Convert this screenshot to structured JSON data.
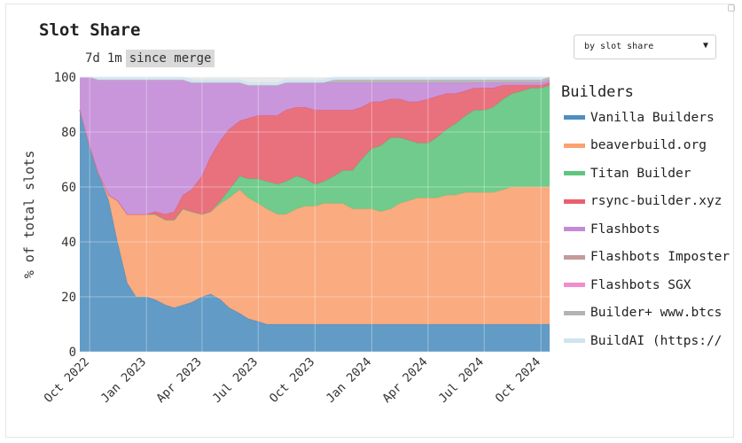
{
  "page": {
    "title": "Slot Share",
    "range_tabs": [
      "7d",
      "1m",
      "since merge"
    ],
    "active_range": "since merge",
    "dropdown": {
      "selected": "by slot share"
    },
    "legend_title": "Builders"
  },
  "chart_data": {
    "type": "area",
    "stacked": true,
    "title": "Slot Share",
    "ylabel": "% of total slots",
    "xlabel": "",
    "ylim": [
      0,
      100
    ],
    "yticks": [
      0,
      20,
      40,
      60,
      80,
      100
    ],
    "xticks": [
      "Oct 2022",
      "Jan 2023",
      "Apr 2023",
      "Jul 2023",
      "Oct 2023",
      "Jan 2024",
      "Apr 2024",
      "Jul 2024",
      "Oct 2024"
    ],
    "grid": true,
    "legend_position": "right",
    "x": [
      "2022-09-15",
      "2022-10-01",
      "2022-10-15",
      "2022-11-01",
      "2022-11-15",
      "2022-12-01",
      "2022-12-15",
      "2023-01-01",
      "2023-01-15",
      "2023-02-01",
      "2023-02-15",
      "2023-03-01",
      "2023-03-15",
      "2023-04-01",
      "2023-04-15",
      "2023-05-01",
      "2023-05-15",
      "2023-06-01",
      "2023-06-15",
      "2023-07-01",
      "2023-07-15",
      "2023-08-01",
      "2023-08-15",
      "2023-09-01",
      "2023-09-15",
      "2023-10-01",
      "2023-10-15",
      "2023-11-01",
      "2023-11-15",
      "2023-12-01",
      "2023-12-15",
      "2024-01-01",
      "2024-01-15",
      "2024-02-01",
      "2024-02-15",
      "2024-03-01",
      "2024-03-15",
      "2024-04-01",
      "2024-04-15",
      "2024-05-01",
      "2024-05-15",
      "2024-06-01",
      "2024-06-15",
      "2024-07-01",
      "2024-07-15",
      "2024-08-01",
      "2024-08-15",
      "2024-09-01",
      "2024-09-15",
      "2024-10-01",
      "2024-10-15"
    ],
    "series": [
      {
        "name": "Vanilla Builders",
        "color": "#4f8fc0",
        "values": [
          88,
          75,
          65,
          55,
          40,
          25,
          20,
          20,
          19,
          17,
          16,
          17,
          18,
          20,
          21,
          19,
          16,
          14,
          12,
          11,
          10,
          10,
          10,
          10,
          10,
          10,
          10,
          10,
          10,
          10,
          10,
          10,
          10,
          10,
          10,
          10,
          10,
          10,
          10,
          10,
          10,
          10,
          10,
          10,
          10,
          10,
          10,
          10,
          10,
          10,
          10
        ]
      },
      {
        "name": "beaverbuild.org",
        "color": "#fca271",
        "values": [
          0,
          0,
          0,
          2,
          15,
          25,
          30,
          30,
          31,
          31,
          32,
          35,
          33,
          30,
          30,
          35,
          40,
          45,
          44,
          43,
          42,
          40,
          40,
          42,
          43,
          43,
          44,
          44,
          44,
          42,
          42,
          42,
          41,
          42,
          44,
          45,
          46,
          46,
          46,
          47,
          47,
          48,
          48,
          48,
          48,
          49,
          50,
          50,
          50,
          50,
          50
        ]
      },
      {
        "name": "Titan Builder",
        "color": "#5ec67e",
        "values": [
          0,
          0,
          0,
          0,
          0,
          0,
          0,
          0,
          0,
          0,
          0,
          0,
          0,
          0,
          0,
          1,
          3,
          5,
          7,
          9,
          10,
          11,
          12,
          12,
          10,
          8,
          8,
          10,
          12,
          14,
          18,
          22,
          24,
          26,
          24,
          22,
          20,
          20,
          22,
          24,
          26,
          28,
          30,
          30,
          31,
          33,
          34,
          35,
          36,
          36,
          37
        ]
      },
      {
        "name": "rsync-builder.xyz",
        "color": "#e8606e",
        "values": [
          0,
          0,
          0,
          0,
          0,
          0,
          0,
          0,
          1,
          2,
          3,
          5,
          8,
          14,
          20,
          22,
          22,
          20,
          22,
          23,
          24,
          25,
          26,
          25,
          26,
          27,
          26,
          24,
          22,
          22,
          19,
          17,
          16,
          14,
          14,
          14,
          15,
          16,
          15,
          13,
          11,
          9,
          8,
          8,
          7,
          5,
          3,
          2,
          1,
          1,
          1
        ]
      },
      {
        "name": "Flashbots",
        "color": "#c48ad8",
        "values": [
          12,
          25,
          34,
          42,
          44,
          49,
          49,
          49,
          48,
          49,
          48,
          42,
          39,
          34,
          27,
          21,
          17,
          14,
          12,
          11,
          11,
          11,
          10,
          9,
          9,
          10,
          10,
          10,
          10,
          10,
          9,
          7,
          7,
          6,
          6,
          7,
          7,
          6,
          5,
          4,
          4,
          3,
          2,
          2,
          2,
          1,
          1,
          1,
          1,
          1,
          1
        ]
      },
      {
        "name": "Flashbots Imposter",
        "color": "#c49a9a",
        "values": [
          0,
          0,
          0,
          0,
          0,
          0,
          0,
          0,
          0,
          0,
          0,
          0,
          0,
          0,
          0,
          0,
          0,
          0,
          0,
          0,
          0,
          0,
          0,
          0,
          0,
          0,
          0,
          0,
          0,
          0,
          0,
          0,
          0,
          0,
          0,
          0,
          0,
          0,
          0,
          0,
          0,
          0,
          0,
          0,
          0,
          0,
          0,
          0,
          0,
          0,
          0
        ]
      },
      {
        "name": "Flashbots SGX",
        "color": "#f28ccf",
        "values": [
          0,
          0,
          0,
          0,
          0,
          0,
          0,
          0,
          0,
          0,
          0,
          0,
          0,
          0,
          0,
          0,
          0,
          0,
          0,
          0,
          0,
          0,
          0,
          0,
          0,
          0,
          0,
          0,
          0,
          0,
          0,
          0,
          0,
          0,
          0,
          0,
          0,
          0,
          0,
          0,
          0,
          0,
          0,
          0,
          0,
          0,
          0,
          0,
          0,
          0,
          0
        ]
      },
      {
        "name": "Builder+ www.btcs",
        "color": "#b3b3b3",
        "values": [
          0,
          0,
          0,
          0,
          0,
          0,
          0,
          0,
          0,
          0,
          0,
          0,
          0,
          0,
          0,
          0,
          0,
          0,
          0,
          0,
          0,
          0,
          0,
          0,
          0,
          0,
          0,
          1,
          1,
          1,
          1,
          1,
          1,
          1,
          1,
          1,
          1,
          1,
          1,
          1,
          1,
          1,
          1,
          1,
          1,
          1,
          1,
          1,
          1,
          1,
          1
        ]
      },
      {
        "name": "BuildAI (https://",
        "color": "#cfe4f0",
        "values": [
          0,
          0,
          1,
          1,
          1,
          1,
          1,
          1,
          1,
          1,
          1,
          1,
          1,
          1,
          1,
          1,
          1,
          1,
          1,
          1,
          1,
          1,
          1,
          1,
          1,
          1,
          1,
          1,
          1,
          1,
          1,
          1,
          1,
          1,
          1,
          1,
          1,
          1,
          1,
          1,
          1,
          1,
          1,
          1,
          1,
          1,
          1,
          1,
          1,
          1,
          0
        ]
      }
    ]
  }
}
